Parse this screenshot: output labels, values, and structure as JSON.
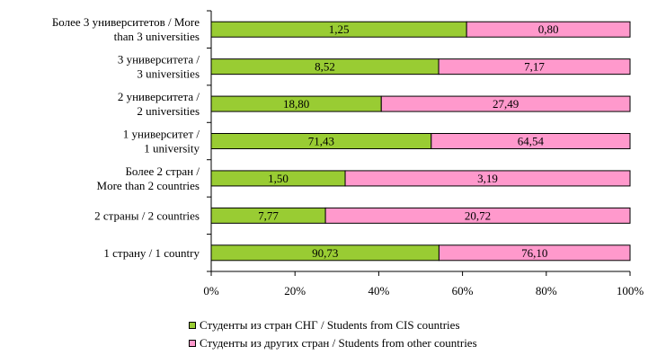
{
  "chart_data": {
    "type": "bar",
    "orientation": "horizontal",
    "stacked": "percent",
    "categories": [
      [
        "Более 3 университетов / More",
        "than 3 universities"
      ],
      [
        "3 университета /",
        "3 universities"
      ],
      [
        "2 университета /",
        "2 universities"
      ],
      [
        "1 университет /",
        "1 university"
      ],
      [
        "Более 2 стран /",
        "More than 2 countries"
      ],
      [
        "2 страны / 2 countries"
      ],
      [
        "1 страну / 1 country"
      ]
    ],
    "series": [
      {
        "name": "Студенты из стран СНГ / Students from CIS countries",
        "color": "#99cc33",
        "values": [
          1.25,
          8.52,
          18.8,
          71.43,
          1.5,
          7.77,
          90.73
        ],
        "labels": [
          "1,25",
          "8,52",
          "18,80",
          "71,43",
          "1,50",
          "7,77",
          "90,73"
        ]
      },
      {
        "name": "Студенты из других стран / Students from other countries",
        "color": "#ff99cc",
        "values": [
          0.8,
          7.17,
          27.49,
          64.54,
          3.19,
          20.72,
          76.1
        ],
        "labels": [
          "0,80",
          "7,17",
          "27,49",
          "64,54",
          "3,19",
          "20,72",
          "76,10"
        ]
      }
    ],
    "x_ticks": [
      "0%",
      "20%",
      "40%",
      "60%",
      "80%",
      "100%"
    ],
    "xlim": [
      0,
      100
    ],
    "legend_position": "bottom"
  }
}
